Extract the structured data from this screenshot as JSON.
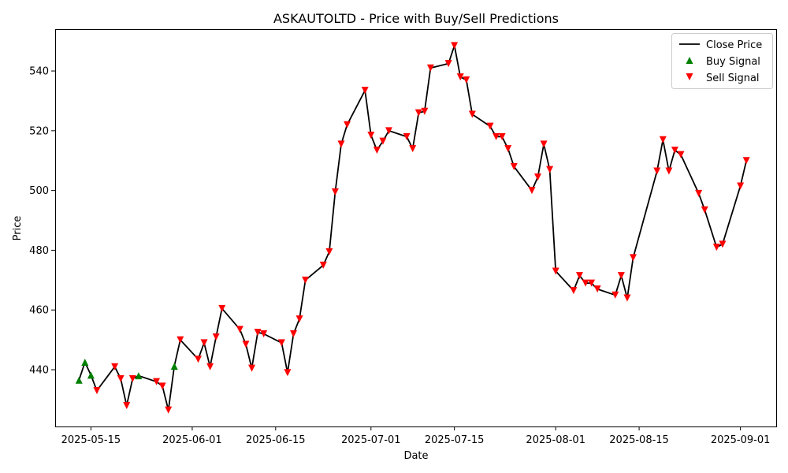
{
  "chart_data": {
    "type": "line",
    "title": "ASKAUTOLTD - Price with Buy/Sell Predictions",
    "xlabel": "Date",
    "ylabel": "Price",
    "xlim": [
      "2025-05-09",
      "2025-09-07"
    ],
    "ylim": [
      421,
      554
    ],
    "x_ticks": [
      "2025-05-15",
      "2025-06-01",
      "2025-06-15",
      "2025-07-01",
      "2025-07-15",
      "2025-08-01",
      "2025-08-15",
      "2025-09-01"
    ],
    "y_ticks": [
      440,
      460,
      480,
      500,
      520,
      540
    ],
    "grid": false,
    "legend_position": "top-right",
    "colors": {
      "close": "#000000",
      "buy": "#008000",
      "sell": "#ff0000"
    },
    "series": [
      {
        "name": "Close Price",
        "type": "line",
        "x": [
          "2025-05-13",
          "2025-05-14",
          "2025-05-15",
          "2025-05-16",
          "2025-05-19",
          "2025-05-20",
          "2025-05-21",
          "2025-05-22",
          "2025-05-23",
          "2025-05-26",
          "2025-05-27",
          "2025-05-28",
          "2025-05-29",
          "2025-05-30",
          "2025-06-02",
          "2025-06-03",
          "2025-06-04",
          "2025-06-05",
          "2025-06-06",
          "2025-06-09",
          "2025-06-10",
          "2025-06-11",
          "2025-06-12",
          "2025-06-13",
          "2025-06-16",
          "2025-06-17",
          "2025-06-18",
          "2025-06-19",
          "2025-06-20",
          "2025-06-23",
          "2025-06-24",
          "2025-06-25",
          "2025-06-26",
          "2025-06-27",
          "2025-06-30",
          "2025-07-01",
          "2025-07-02",
          "2025-07-03",
          "2025-07-04",
          "2025-07-07",
          "2025-07-08",
          "2025-07-09",
          "2025-07-10",
          "2025-07-11",
          "2025-07-14",
          "2025-07-15",
          "2025-07-16",
          "2025-07-17",
          "2025-07-18",
          "2025-07-21",
          "2025-07-22",
          "2025-07-23",
          "2025-07-24",
          "2025-07-25",
          "2025-07-28",
          "2025-07-29",
          "2025-07-30",
          "2025-07-31",
          "2025-08-01",
          "2025-08-04",
          "2025-08-05",
          "2025-08-06",
          "2025-08-07",
          "2025-08-08",
          "2025-08-11",
          "2025-08-12",
          "2025-08-13",
          "2025-08-14",
          "2025-08-18",
          "2025-08-19",
          "2025-08-20",
          "2025-08-21",
          "2025-08-22",
          "2025-08-25",
          "2025-08-26",
          "2025-08-28",
          "2025-08-29",
          "2025-09-01",
          "2025-09-02"
        ],
        "y": [
          436.5,
          442.5,
          438.2,
          433.0,
          441.0,
          437.0,
          428.0,
          437.0,
          438.0,
          436.0,
          434.5,
          426.5,
          441.2,
          450.0,
          443.5,
          449.0,
          441.0,
          451.0,
          460.5,
          453.5,
          448.5,
          440.5,
          452.5,
          452.0,
          449.0,
          439.0,
          452.0,
          457.0,
          470.0,
          475.0,
          479.5,
          499.5,
          515.5,
          522.0,
          533.5,
          518.5,
          513.5,
          516.5,
          520.0,
          518.0,
          514.0,
          526.0,
          526.5,
          541.0,
          542.5,
          548.5,
          538.0,
          537.0,
          525.5,
          521.5,
          518.0,
          518.0,
          514.0,
          508.0,
          500.0,
          504.5,
          515.5,
          507.0,
          473.0,
          466.5,
          471.5,
          469.0,
          469.0,
          467.0,
          465.0,
          471.5,
          464.0,
          477.5,
          506.5,
          517.0,
          506.5,
          513.5,
          512.0,
          499.0,
          493.5,
          481.0,
          482.0,
          501.5,
          510.0
        ]
      },
      {
        "name": "Buy Signal",
        "type": "scatter",
        "marker": "triangle-up",
        "x": [
          "2025-05-13",
          "2025-05-14",
          "2025-05-15",
          "2025-05-23",
          "2025-05-29"
        ],
        "y": [
          436.5,
          442.5,
          438.2,
          438.0,
          441.2
        ]
      },
      {
        "name": "Sell Signal",
        "type": "scatter",
        "marker": "triangle-down",
        "x": [
          "2025-05-16",
          "2025-05-19",
          "2025-05-20",
          "2025-05-21",
          "2025-05-22",
          "2025-05-26",
          "2025-05-27",
          "2025-05-28",
          "2025-05-30",
          "2025-06-02",
          "2025-06-03",
          "2025-06-04",
          "2025-06-05",
          "2025-06-06",
          "2025-06-09",
          "2025-06-10",
          "2025-06-11",
          "2025-06-12",
          "2025-06-13",
          "2025-06-16",
          "2025-06-17",
          "2025-06-18",
          "2025-06-19",
          "2025-06-20",
          "2025-06-23",
          "2025-06-24",
          "2025-06-25",
          "2025-06-26",
          "2025-06-27",
          "2025-06-30",
          "2025-07-01",
          "2025-07-02",
          "2025-07-03",
          "2025-07-04",
          "2025-07-07",
          "2025-07-08",
          "2025-07-09",
          "2025-07-10",
          "2025-07-11",
          "2025-07-14",
          "2025-07-15",
          "2025-07-16",
          "2025-07-17",
          "2025-07-18",
          "2025-07-21",
          "2025-07-22",
          "2025-07-23",
          "2025-07-24",
          "2025-07-25",
          "2025-07-28",
          "2025-07-29",
          "2025-07-30",
          "2025-07-31",
          "2025-08-01",
          "2025-08-04",
          "2025-08-05",
          "2025-08-06",
          "2025-08-07",
          "2025-08-08",
          "2025-08-11",
          "2025-08-12",
          "2025-08-13",
          "2025-08-14",
          "2025-08-18",
          "2025-08-19",
          "2025-08-20",
          "2025-08-21",
          "2025-08-22",
          "2025-08-25",
          "2025-08-26",
          "2025-08-28",
          "2025-08-29",
          "2025-09-01",
          "2025-09-02"
        ],
        "y": [
          433.0,
          441.0,
          437.0,
          428.0,
          437.0,
          436.0,
          434.5,
          426.5,
          450.0,
          443.5,
          449.0,
          441.0,
          451.0,
          460.5,
          453.5,
          448.5,
          440.5,
          452.5,
          452.0,
          449.0,
          439.0,
          452.0,
          457.0,
          470.0,
          475.0,
          479.5,
          499.5,
          515.5,
          522.0,
          533.5,
          518.5,
          513.5,
          516.5,
          520.0,
          518.0,
          514.0,
          526.0,
          526.5,
          541.0,
          542.5,
          548.5,
          538.0,
          537.0,
          525.5,
          521.5,
          518.0,
          518.0,
          514.0,
          508.0,
          500.0,
          504.5,
          515.5,
          507.0,
          473.0,
          466.5,
          471.5,
          469.0,
          469.0,
          467.0,
          465.0,
          471.5,
          464.0,
          477.5,
          506.5,
          517.0,
          506.5,
          513.5,
          512.0,
          499.0,
          493.5,
          481.0,
          482.0,
          501.5,
          510.0
        ]
      }
    ]
  }
}
